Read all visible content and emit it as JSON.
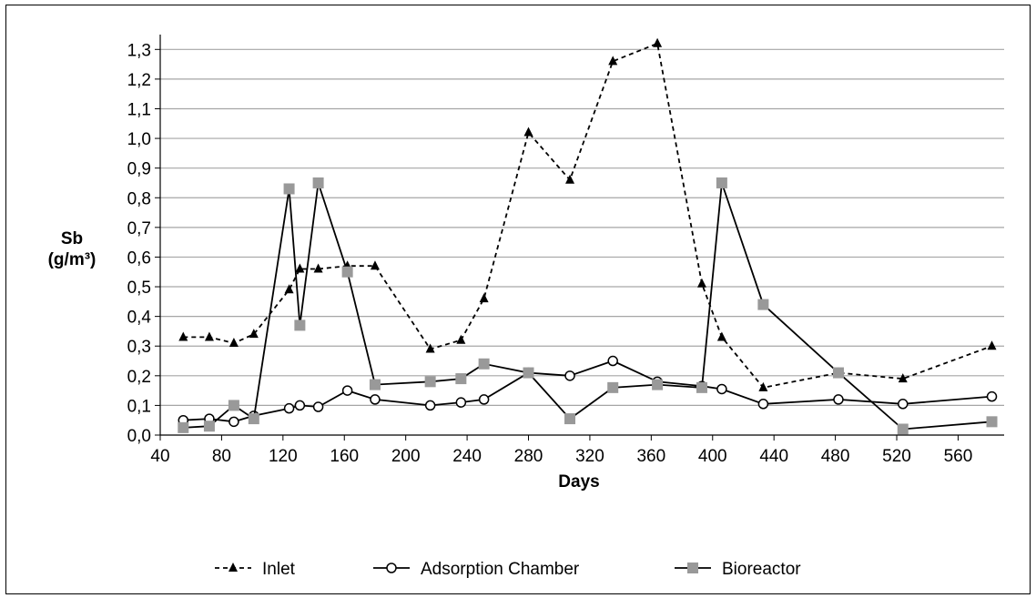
{
  "chart_data": {
    "type": "line",
    "xlabel": "Days",
    "ylabel_line1": "Sb",
    "ylabel_line2": "(g/m³)",
    "xlim": [
      40,
      590
    ],
    "ylim": [
      0,
      1.35
    ],
    "x_ticks": [
      40,
      80,
      120,
      160,
      200,
      240,
      280,
      320,
      360,
      400,
      440,
      480,
      520,
      560
    ],
    "x_tick_labels": [
      "40",
      "80",
      "120",
      "160",
      "200",
      "240",
      "280",
      "320",
      "360",
      "400",
      "440",
      "480",
      "520",
      "560"
    ],
    "y_ticks": [
      0,
      0.1,
      0.2,
      0.3,
      0.4,
      0.5,
      0.6,
      0.7,
      0.8,
      0.9,
      1.0,
      1.1,
      1.2,
      1.3
    ],
    "y_tick_labels": [
      "0,0",
      "0,1",
      "0,2",
      "0,3",
      "0,4",
      "0,5",
      "0,6",
      "0,7",
      "0,8",
      "0,9",
      "1,0",
      "1,1",
      "1,2",
      "1,3"
    ],
    "grid": true,
    "legend_position": "bottom",
    "series": [
      {
        "name": "Inlet",
        "color": "#000000",
        "style": "dashed",
        "marker": "triangle",
        "x": [
          55,
          72,
          88,
          101,
          124,
          131,
          143,
          162,
          180,
          216,
          236,
          251,
          280,
          307,
          335,
          364,
          393,
          406,
          433,
          482,
          524,
          582
        ],
        "y": [
          0.33,
          0.33,
          0.31,
          0.34,
          0.49,
          0.56,
          0.56,
          0.57,
          0.57,
          0.29,
          0.32,
          0.46,
          1.02,
          0.86,
          1.26,
          1.32,
          0.51,
          0.33,
          0.16,
          0.21,
          0.19,
          0.3
        ]
      },
      {
        "name": "Adsorption Chamber",
        "color": "#000000",
        "style": "solid",
        "marker": "circle",
        "x": [
          55,
          72,
          88,
          101,
          124,
          131,
          143,
          162,
          180,
          216,
          236,
          251,
          280,
          307,
          335,
          364,
          393,
          406,
          433,
          482,
          524,
          582
        ],
        "y": [
          0.05,
          0.055,
          0.045,
          0.065,
          0.09,
          0.1,
          0.095,
          0.15,
          0.12,
          0.1,
          0.11,
          0.12,
          0.21,
          0.2,
          0.25,
          0.18,
          0.165,
          0.155,
          0.105,
          0.12,
          0.105,
          0.13
        ]
      },
      {
        "name": "Bioreactor",
        "color": "#999999",
        "style": "solid",
        "marker": "square",
        "x": [
          55,
          72,
          88,
          101,
          124,
          131,
          143,
          162,
          180,
          216,
          236,
          251,
          280,
          307,
          335,
          364,
          393,
          406,
          433,
          482,
          524,
          582
        ],
        "y": [
          0.025,
          0.03,
          0.1,
          0.055,
          0.83,
          0.37,
          0.85,
          0.55,
          0.17,
          0.18,
          0.19,
          0.24,
          0.21,
          0.055,
          0.16,
          0.17,
          0.16,
          0.85,
          0.44,
          0.21,
          0.02,
          0.045
        ]
      }
    ]
  }
}
